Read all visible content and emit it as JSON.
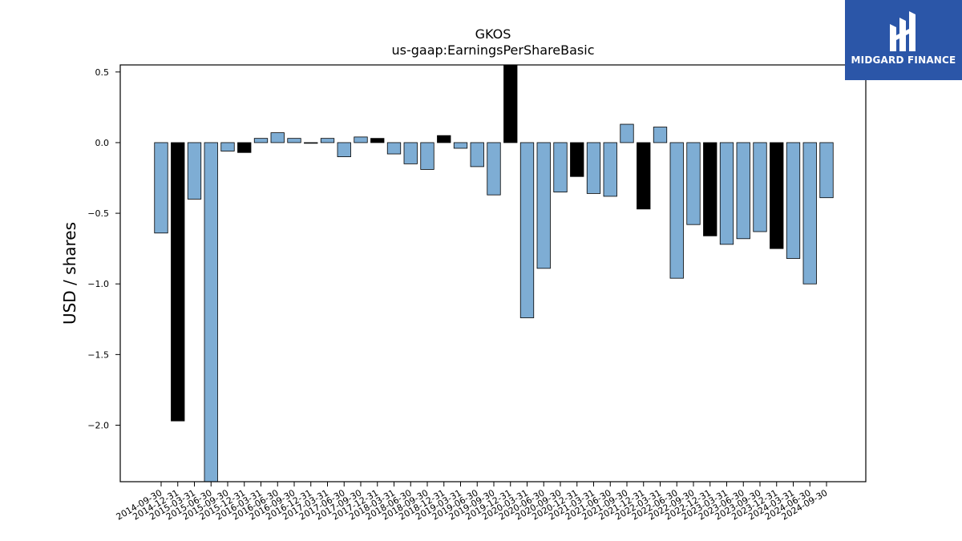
{
  "chart_data": {
    "type": "bar",
    "title": "GKOS",
    "subtitle": "us-gaap:EarningsPerShareBasic",
    "xlabel": "",
    "ylabel": "USD / shares",
    "ylim": [
      -2.4,
      0.55
    ],
    "yticks": [
      0.5,
      0.0,
      -0.5,
      -1.0,
      -1.5,
      -2.0
    ],
    "ytick_labels": [
      "0.5",
      "0.0",
      "−0.5",
      "−1.0",
      "−1.5",
      "−2.0"
    ],
    "grid": false,
    "categories": [
      "2014-09-30",
      "2014-12-31",
      "2015-03-31",
      "2015-06-30",
      "2015-09-30",
      "2015-12-31",
      "2016-03-31",
      "2016-06-30",
      "2016-09-30",
      "2016-12-31",
      "2017-03-31",
      "2017-06-30",
      "2017-09-30",
      "2017-12-31",
      "2018-03-31",
      "2018-06-30",
      "2018-09-30",
      "2018-12-31",
      "2019-03-31",
      "2019-06-30",
      "2019-09-30",
      "2019-12-31",
      "2020-03-31",
      "2020-06-30",
      "2020-09-30",
      "2020-12-31",
      "2021-03-31",
      "2021-06-30",
      "2021-09-30",
      "2021-12-31",
      "2022-03-31",
      "2022-06-30",
      "2022-09-30",
      "2022-12-31",
      "2023-03-31",
      "2023-06-30",
      "2023-09-30",
      "2023-12-31",
      "2024-03-31",
      "2024-06-30",
      "2024-09-30"
    ],
    "values": [
      -0.64,
      -1.97,
      -0.4,
      -2.6,
      -0.06,
      -0.07,
      0.03,
      0.07,
      0.03,
      -0.005,
      0.03,
      -0.1,
      0.04,
      0.03,
      -0.08,
      -0.15,
      -0.19,
      0.05,
      -0.04,
      -0.17,
      -0.37,
      0.6,
      -1.24,
      -0.89,
      -0.35,
      -0.24,
      -0.36,
      -0.38,
      0.13,
      -0.47,
      0.11,
      -0.96,
      -0.58,
      -0.66,
      -0.72,
      -0.68,
      -0.63,
      -0.75,
      -0.82,
      -1.0,
      -0.39
    ],
    "highlight": [
      false,
      true,
      false,
      false,
      false,
      true,
      false,
      false,
      false,
      false,
      false,
      false,
      false,
      true,
      false,
      false,
      false,
      true,
      false,
      false,
      false,
      true,
      false,
      false,
      false,
      true,
      false,
      false,
      false,
      true,
      false,
      false,
      false,
      true,
      false,
      false,
      false,
      true,
      false,
      false,
      false
    ],
    "colors": {
      "normal": "#7eadd4",
      "highlight": "#000000",
      "edge": "#000000"
    }
  },
  "logo": {
    "text": "MIDGARD FINANCE",
    "bg": "#2b56a8"
  }
}
